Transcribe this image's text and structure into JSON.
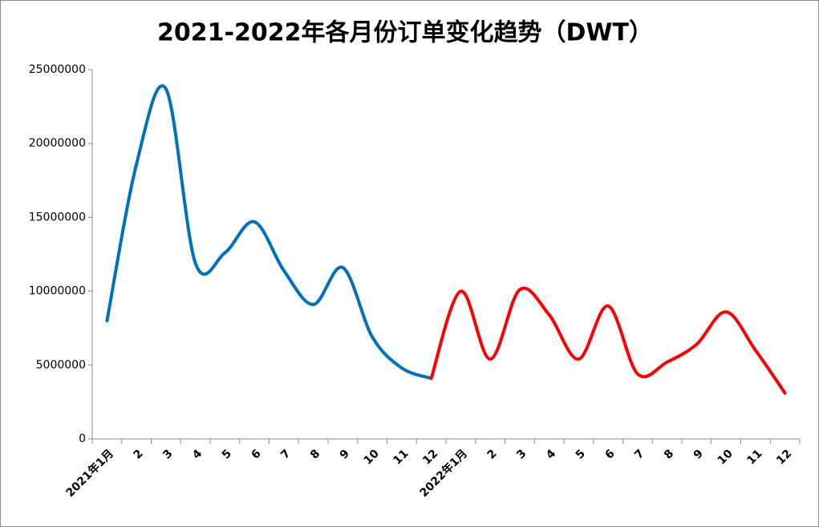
{
  "chart_data": {
    "type": "line",
    "title": "2021-2022年各月份订单变化趋势（DWT）",
    "categories": [
      "2021年1月",
      "2",
      "3",
      "4",
      "5",
      "6",
      "7",
      "8",
      "9",
      "10",
      "11",
      "12",
      "2022年1月",
      "2",
      "3",
      "4",
      "5",
      "6",
      "7",
      "8",
      "9",
      "10",
      "11",
      "12"
    ],
    "series": [
      {
        "color": "#0070c0",
        "values": [
          8000000,
          18600000,
          23700000,
          11900000,
          12600000,
          14700000,
          11400000,
          9100000,
          11600000,
          6900000,
          4800000,
          4100000,
          null,
          null,
          null,
          null,
          null,
          null,
          null,
          null,
          null,
          null,
          null,
          null
        ]
      },
      {
        "color": "#ff0000",
        "values": [
          null,
          null,
          null,
          null,
          null,
          null,
          null,
          null,
          null,
          null,
          null,
          4100000,
          10000000,
          5400000,
          10100000,
          8400000,
          5400000,
          9000000,
          4400000,
          5200000,
          6400000,
          8600000,
          6000000,
          3100000
        ]
      }
    ],
    "ylim": [
      0,
      25000000
    ],
    "yticks": [
      0,
      5000000,
      10000000,
      15000000,
      20000000,
      25000000
    ],
    "grid": false
  }
}
